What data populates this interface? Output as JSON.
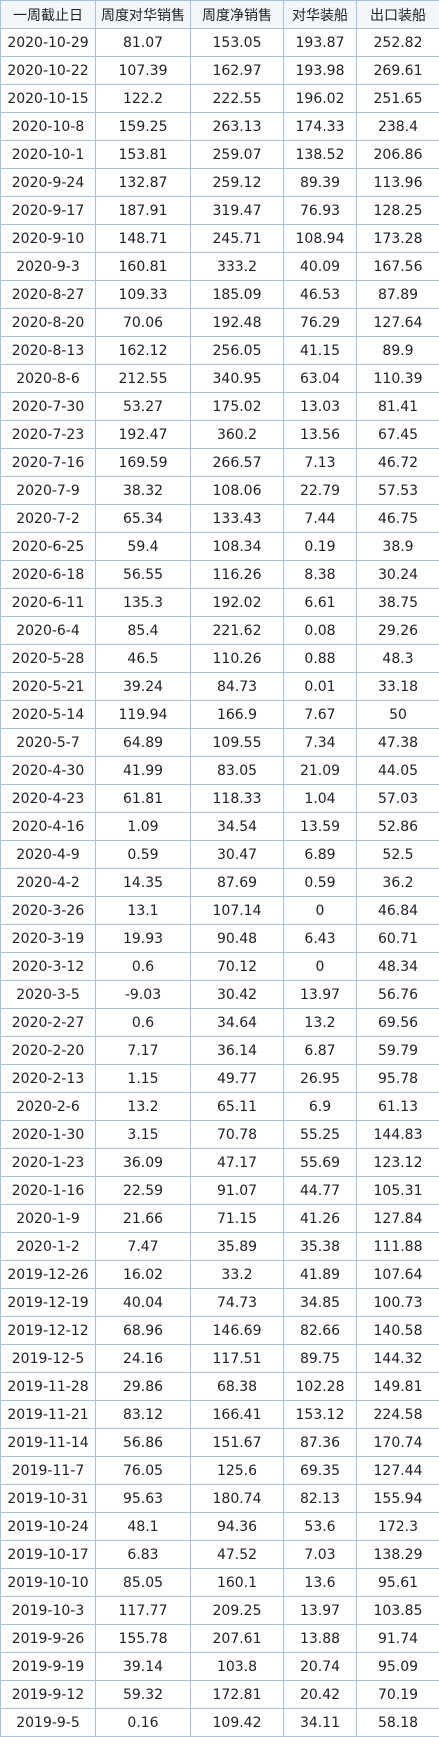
{
  "table": {
    "header": [
      "一周截止日",
      "周度对华销售",
      "周度净销售",
      "对华装船",
      "出口装船"
    ],
    "rows": [
      [
        "2020-10-29",
        81.07,
        153.05,
        193.87,
        252.82
      ],
      [
        "2020-10-22",
        107.39,
        162.97,
        193.98,
        269.61
      ],
      [
        "2020-10-15",
        122.2,
        222.55,
        196.02,
        251.65
      ],
      [
        "2020-10-8",
        159.25,
        263.13,
        174.33,
        238.4
      ],
      [
        "2020-10-1",
        153.81,
        259.07,
        138.52,
        206.86
      ],
      [
        "2020-9-24",
        132.87,
        259.12,
        89.39,
        113.96
      ],
      [
        "2020-9-17",
        187.91,
        319.47,
        76.93,
        128.25
      ],
      [
        "2020-9-10",
        148.71,
        245.71,
        108.94,
        173.28
      ],
      [
        "2020-9-3",
        160.81,
        333.2,
        40.09,
        167.56
      ],
      [
        "2020-8-27",
        109.33,
        185.09,
        46.53,
        87.89
      ],
      [
        "2020-8-20",
        70.06,
        192.48,
        76.29,
        127.64
      ],
      [
        "2020-8-13",
        162.12,
        256.05,
        41.15,
        89.9
      ],
      [
        "2020-8-6",
        212.55,
        340.95,
        63.04,
        110.39
      ],
      [
        "2020-7-30",
        53.27,
        175.02,
        13.03,
        81.41
      ],
      [
        "2020-7-23",
        192.47,
        360.2,
        13.56,
        67.45
      ],
      [
        "2020-7-16",
        169.59,
        266.57,
        7.13,
        46.72
      ],
      [
        "2020-7-9",
        38.32,
        108.06,
        22.79,
        57.53
      ],
      [
        "2020-7-2",
        65.34,
        133.43,
        7.44,
        46.75
      ],
      [
        "2020-6-25",
        59.4,
        108.34,
        0.19,
        38.9
      ],
      [
        "2020-6-18",
        56.55,
        116.26,
        8.38,
        30.24
      ],
      [
        "2020-6-11",
        135.3,
        192.02,
        6.61,
        38.75
      ],
      [
        "2020-6-4",
        85.4,
        221.62,
        0.08,
        29.26
      ],
      [
        "2020-5-28",
        46.5,
        110.26,
        0.88,
        48.3
      ],
      [
        "2020-5-21",
        39.24,
        84.73,
        0.01,
        33.18
      ],
      [
        "2020-5-14",
        119.94,
        166.9,
        7.67,
        50
      ],
      [
        "2020-5-7",
        64.89,
        109.55,
        7.34,
        47.38
      ],
      [
        "2020-4-30",
        41.99,
        83.05,
        21.09,
        44.05
      ],
      [
        "2020-4-23",
        61.81,
        118.33,
        1.04,
        57.03
      ],
      [
        "2020-4-16",
        1.09,
        34.54,
        13.59,
        52.86
      ],
      [
        "2020-4-9",
        0.59,
        30.47,
        6.89,
        52.5
      ],
      [
        "2020-4-2",
        14.35,
        87.69,
        0.59,
        36.2
      ],
      [
        "2020-3-26",
        13.1,
        107.14,
        0,
        46.84
      ],
      [
        "2020-3-19",
        19.93,
        90.48,
        6.43,
        60.71
      ],
      [
        "2020-3-12",
        0.6,
        70.12,
        0,
        48.34
      ],
      [
        "2020-3-5",
        -9.03,
        30.42,
        13.97,
        56.76
      ],
      [
        "2020-2-27",
        0.6,
        34.64,
        13.2,
        69.56
      ],
      [
        "2020-2-20",
        7.17,
        36.14,
        6.87,
        59.79
      ],
      [
        "2020-2-13",
        1.15,
        49.77,
        26.95,
        95.78
      ],
      [
        "2020-2-6",
        13.2,
        65.11,
        6.9,
        61.13
      ],
      [
        "2020-1-30",
        3.15,
        70.78,
        55.25,
        144.83
      ],
      [
        "2020-1-23",
        36.09,
        47.17,
        55.69,
        123.12
      ],
      [
        "2020-1-16",
        22.59,
        91.07,
        44.77,
        105.31
      ],
      [
        "2020-1-9",
        21.66,
        71.15,
        41.26,
        127.84
      ],
      [
        "2020-1-2",
        7.47,
        35.89,
        35.38,
        111.88
      ],
      [
        "2019-12-26",
        16.02,
        33.2,
        41.89,
        107.64
      ],
      [
        "2019-12-19",
        40.04,
        74.73,
        34.85,
        100.73
      ],
      [
        "2019-12-12",
        68.96,
        146.69,
        82.66,
        140.58
      ],
      [
        "2019-12-5",
        24.16,
        117.51,
        89.75,
        144.32
      ],
      [
        "2019-11-28",
        29.86,
        68.38,
        102.28,
        149.81
      ],
      [
        "2019-11-21",
        83.12,
        166.41,
        153.12,
        224.58
      ],
      [
        "2019-11-14",
        56.86,
        151.67,
        87.36,
        170.74
      ],
      [
        "2019-11-7",
        76.05,
        125.6,
        69.35,
        127.44
      ],
      [
        "2019-10-31",
        95.63,
        180.74,
        82.13,
        155.94
      ],
      [
        "2019-10-24",
        48.1,
        94.36,
        53.6,
        172.3
      ],
      [
        "2019-10-17",
        6.83,
        47.52,
        7.03,
        138.29
      ],
      [
        "2019-10-10",
        85.05,
        160.1,
        13.6,
        95.61
      ],
      [
        "2019-10-3",
        117.77,
        209.25,
        13.97,
        103.85
      ],
      [
        "2019-9-26",
        155.78,
        207.61,
        13.88,
        91.74
      ],
      [
        "2019-9-19",
        39.14,
        103.8,
        20.74,
        95.09
      ],
      [
        "2019-9-12",
        59.32,
        172.81,
        20.42,
        70.19
      ],
      [
        "2019-9-5",
        0.16,
        109.42,
        34.11,
        58.18
      ]
    ]
  }
}
